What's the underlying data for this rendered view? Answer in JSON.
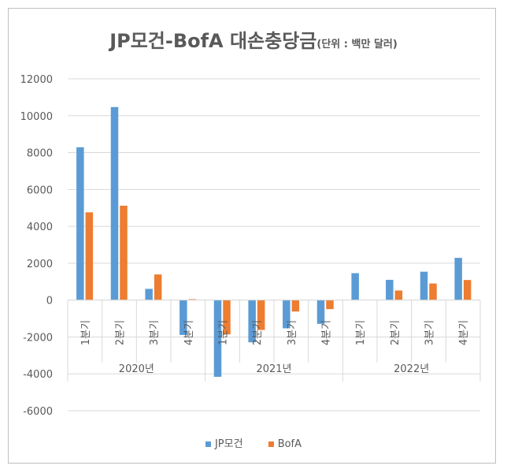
{
  "chart_data": {
    "type": "bar",
    "title": "JP모건-BofA 대손충당금",
    "subtitle": "(단위 : 백만 달러)",
    "quarter_labels": [
      "1분기",
      "2분기",
      "3분기",
      "4분기",
      "1분기",
      "2분기",
      "3분기",
      "4분기",
      "1분기",
      "2분기",
      "3분기",
      "4분기"
    ],
    "years": [
      {
        "label": "2020년",
        "start": 0,
        "count": 4
      },
      {
        "label": "2021년",
        "start": 4,
        "count": 4
      },
      {
        "label": "2022년",
        "start": 8,
        "count": 4
      }
    ],
    "series": [
      {
        "name": "JP모건",
        "color": "#5b9bd5",
        "values": [
          8290,
          10470,
          610,
          -1890,
          -4160,
          -2290,
          -1530,
          -1290,
          1460,
          1100,
          1540,
          2290
        ]
      },
      {
        "name": "BofA",
        "color": "#ed7d31",
        "values": [
          4760,
          5120,
          1390,
          50,
          -1860,
          -1620,
          -620,
          -490,
          0,
          520,
          900,
          1090
        ]
      }
    ],
    "yticks": [
      12000,
      10000,
      8000,
      6000,
      4000,
      2000,
      0,
      -2000,
      -4000,
      -6000
    ],
    "ylim": [
      -6000,
      12000
    ],
    "grid": true,
    "legend_position": "bottom"
  }
}
